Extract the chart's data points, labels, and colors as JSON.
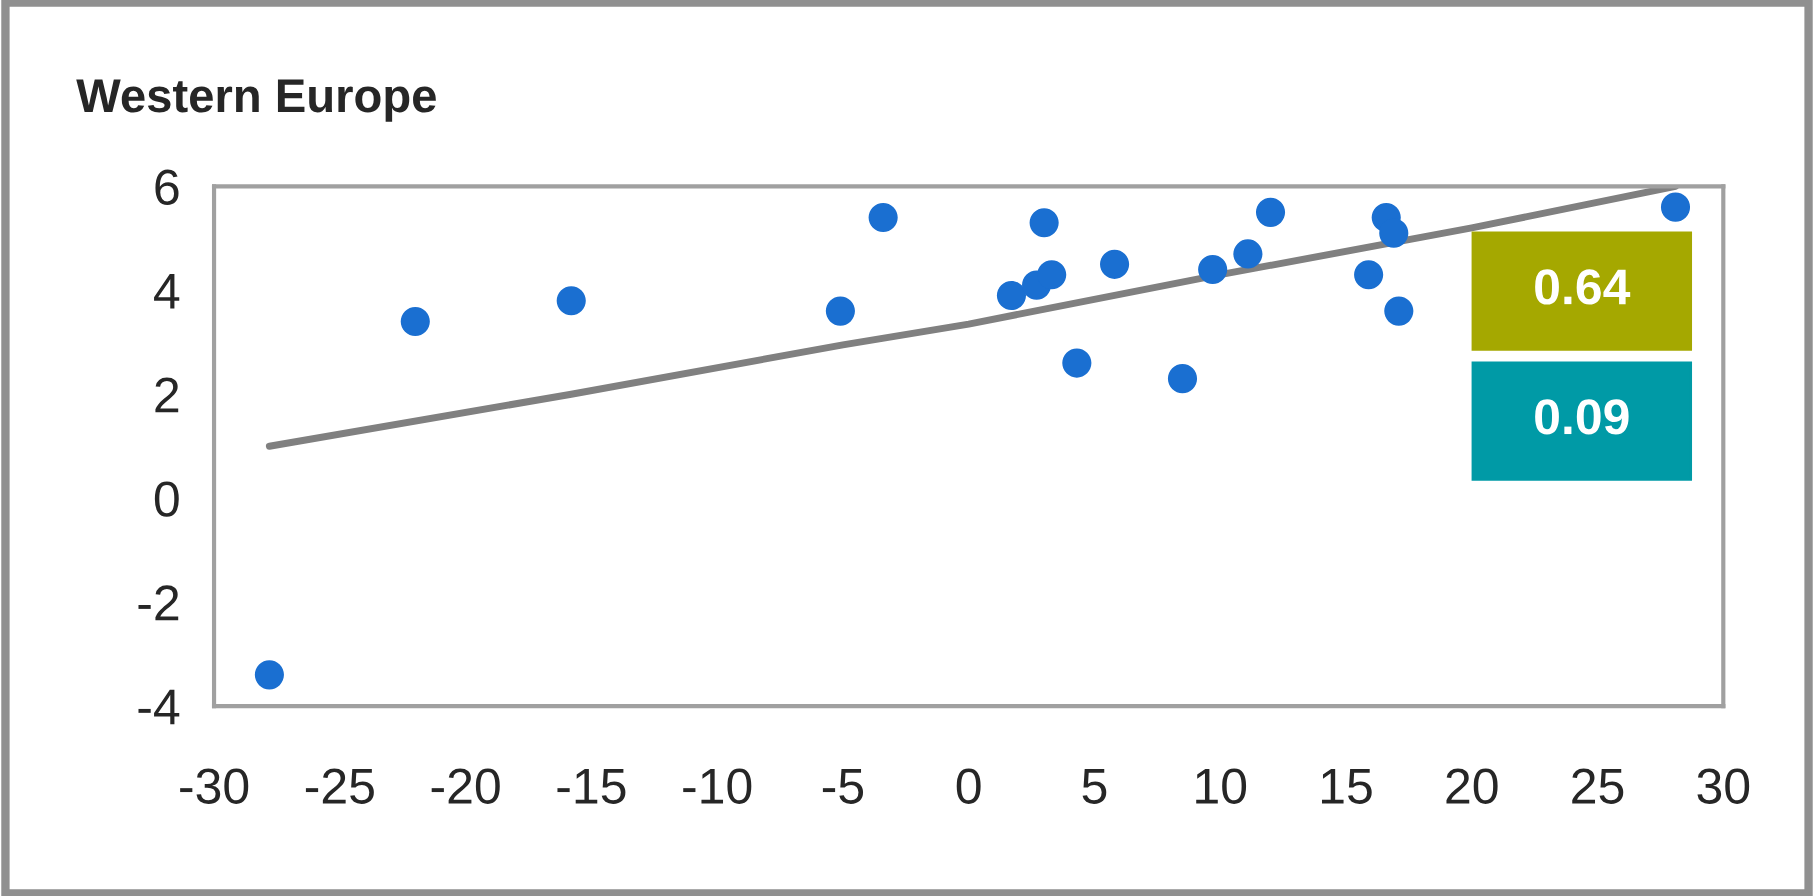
{
  "chart_data": {
    "type": "scatter",
    "title": "Western Europe",
    "series": [
      {
        "color": "#1a6fd1",
        "marker": "circle",
        "x": [
          -27.8,
          -22.0,
          -15.8,
          -5.1,
          -3.4,
          1.7,
          2.7,
          3.0,
          3.3,
          4.3,
          5.8,
          8.5,
          9.7,
          11.1,
          12.0,
          15.9,
          16.6,
          16.9,
          17.1,
          28.1
        ],
        "values": [
          -3.4,
          3.4,
          3.8,
          3.6,
          5.4,
          3.9,
          4.1,
          5.3,
          4.3,
          2.6,
          4.5,
          2.3,
          4.4,
          4.7,
          5.5,
          4.3,
          5.4,
          5.1,
          3.6,
          5.6
        ]
      },
      {
        "type": "line",
        "color": "#808080",
        "x": [
          -27.8,
          -15.8,
          -5.0,
          0.0,
          10.0,
          20.0,
          28.1
        ],
        "values": [
          1.0,
          2.0,
          2.95,
          3.35,
          4.3,
          5.2,
          6.0
        ]
      }
    ],
    "annotations": [
      "0.64",
      "0.09"
    ],
    "xlim": [
      -30,
      30
    ],
    "xticks": [
      -30,
      -25,
      -20,
      -15,
      -10,
      -5,
      0,
      5,
      10,
      15,
      20,
      25,
      30
    ],
    "ylim": [
      -4,
      6
    ],
    "yticks": [
      -4,
      -2,
      0,
      2,
      4,
      6
    ],
    "grid": false,
    "legend": false
  }
}
